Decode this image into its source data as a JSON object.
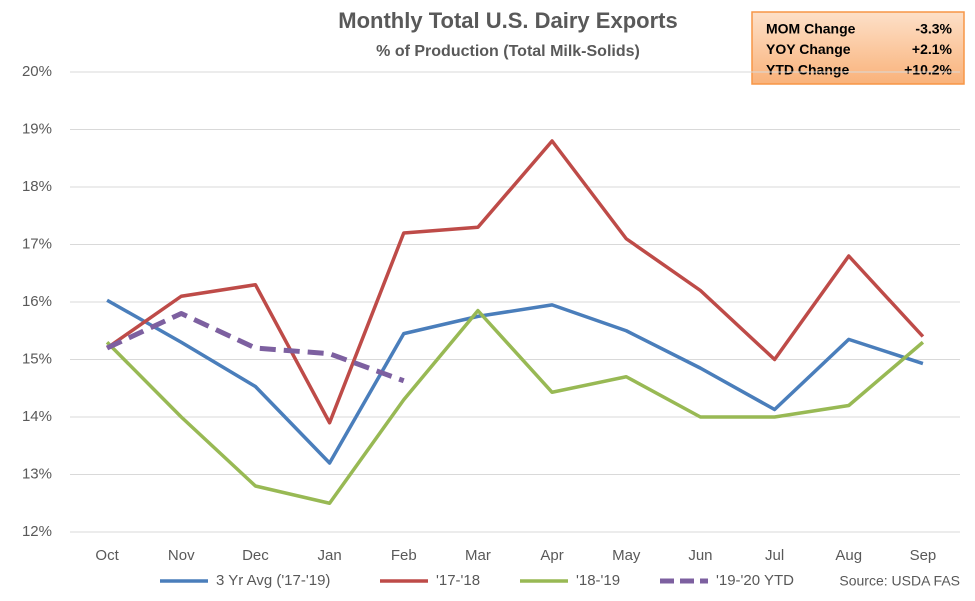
{
  "chart_data": {
    "type": "line",
    "title": "Monthly Total U.S. Dairy Exports",
    "subtitle": "% of Production  (Total Milk-Solids)",
    "source": "Source: USDA FAS",
    "summary": [
      {
        "label": "MOM Change",
        "value": "-3.3%"
      },
      {
        "label": "YOY Change",
        "value": "+2.1%"
      },
      {
        "label": "YTD Change",
        "value": "+10.2%"
      }
    ],
    "categories": [
      "Oct",
      "Nov",
      "Dec",
      "Jan",
      "Feb",
      "Mar",
      "Apr",
      "May",
      "Jun",
      "Jul",
      "Aug",
      "Sep"
    ],
    "series": [
      {
        "name": "3 Yr Avg ('17-'19)",
        "color": "#4a7ebb",
        "values": [
          16.03,
          15.3,
          14.53,
          13.2,
          15.45,
          15.75,
          15.95,
          15.5,
          14.85,
          14.13,
          15.35,
          14.93
        ]
      },
      {
        "name": "'17-'18",
        "color": "#be4b48",
        "values": [
          15.2,
          16.1,
          16.3,
          13.9,
          17.2,
          17.3,
          18.8,
          17.1,
          16.2,
          15.0,
          16.8,
          15.4
        ]
      },
      {
        "name": "'18-'19",
        "color": "#98b954",
        "values": [
          15.3,
          14.0,
          12.8,
          12.5,
          14.3,
          15.85,
          14.43,
          14.7,
          14.0,
          14.0,
          14.2,
          15.3
        ]
      },
      {
        "name": "'19-'20 YTD",
        "color": "#7d60a0",
        "dashed": true,
        "values": [
          15.2,
          15.8,
          15.2,
          15.1,
          14.63,
          null,
          null,
          null,
          null,
          null,
          null,
          null
        ]
      }
    ],
    "ylim": [
      12,
      20
    ],
    "yticks": [
      {
        "value": 12,
        "label": "12%"
      },
      {
        "value": 13,
        "label": "13%"
      },
      {
        "value": 14,
        "label": "14%"
      },
      {
        "value": 15,
        "label": "15%"
      },
      {
        "value": 16,
        "label": "16%"
      },
      {
        "value": 17,
        "label": "17%"
      },
      {
        "value": 18,
        "label": "18%"
      },
      {
        "value": 19,
        "label": "19%"
      },
      {
        "value": 20,
        "label": "20%"
      }
    ],
    "grid": true
  }
}
